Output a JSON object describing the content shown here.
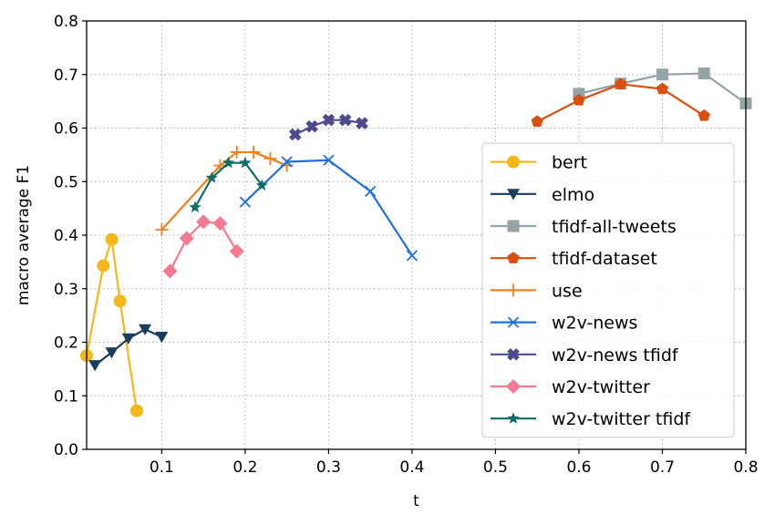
{
  "chart_data": {
    "type": "line",
    "title": "",
    "xlabel": "t",
    "ylabel": "macro average F1",
    "xlim": [
      0.01,
      0.8
    ],
    "ylim": [
      0.0,
      0.8
    ],
    "xticks": [
      0.1,
      0.2,
      0.3,
      0.4,
      0.5,
      0.6,
      0.7,
      0.8
    ],
    "xtick_labels": [
      "0.1",
      "0.2",
      "0.3",
      "0.4",
      "0.5",
      "0.6",
      "0.7",
      "0.8"
    ],
    "yticks": [
      0.0,
      0.1,
      0.2,
      0.3,
      0.4,
      0.5,
      0.6,
      0.7,
      0.8
    ],
    "ytick_labels": [
      "0.0",
      "0.1",
      "0.2",
      "0.3",
      "0.4",
      "0.5",
      "0.6",
      "0.7",
      "0.8"
    ],
    "grid": true,
    "legend_position": "right",
    "series": [
      {
        "name": "bert",
        "color": "#F5B81C",
        "marker": "circle",
        "x": [
          0.01,
          0.03,
          0.04,
          0.05,
          0.07
        ],
        "y": [
          0.175,
          0.343,
          0.392,
          0.277,
          0.072
        ]
      },
      {
        "name": "elmo",
        "color": "#1B3E5C",
        "marker": "triangle-down",
        "x": [
          0.02,
          0.04,
          0.06,
          0.08,
          0.1
        ],
        "y": [
          0.157,
          0.181,
          0.207,
          0.224,
          0.21
        ]
      },
      {
        "name": "tfidf-all-tweets",
        "color": "#95A5A6",
        "marker": "square",
        "x": [
          0.6,
          0.65,
          0.7,
          0.75,
          0.8
        ],
        "y": [
          0.664,
          0.683,
          0.7,
          0.702,
          0.646
        ]
      },
      {
        "name": "tfidf-dataset",
        "color": "#D94F0F",
        "marker": "pentagon",
        "x": [
          0.55,
          0.6,
          0.65,
          0.7,
          0.75
        ],
        "y": [
          0.612,
          0.652,
          0.682,
          0.673,
          0.623
        ]
      },
      {
        "name": "use",
        "color": "#F0801E",
        "marker": "plus",
        "x": [
          0.1,
          0.17,
          0.19,
          0.21,
          0.23,
          0.25
        ],
        "y": [
          0.41,
          0.53,
          0.555,
          0.555,
          0.543,
          0.53
        ]
      },
      {
        "name": "w2v-news",
        "color": "#1F6FD8",
        "marker": "x",
        "x": [
          0.2,
          0.25,
          0.3,
          0.35,
          0.4
        ],
        "y": [
          0.462,
          0.537,
          0.54,
          0.482,
          0.362
        ]
      },
      {
        "name": "w2v-news tfidf",
        "color": "#4B4A8A",
        "marker": "plus-filled",
        "x": [
          0.26,
          0.28,
          0.3,
          0.32,
          0.34
        ],
        "y": [
          0.588,
          0.603,
          0.615,
          0.615,
          0.609
        ]
      },
      {
        "name": "w2v-twitter",
        "color": "#F47A92",
        "marker": "diamond",
        "x": [
          0.11,
          0.13,
          0.15,
          0.17,
          0.19
        ],
        "y": [
          0.333,
          0.394,
          0.425,
          0.422,
          0.37
        ]
      },
      {
        "name": "w2v-twitter tfidf",
        "color": "#0F6E6A",
        "marker": "star",
        "x": [
          0.14,
          0.16,
          0.18,
          0.2,
          0.22
        ],
        "y": [
          0.452,
          0.507,
          0.535,
          0.535,
          0.493
        ]
      }
    ]
  }
}
